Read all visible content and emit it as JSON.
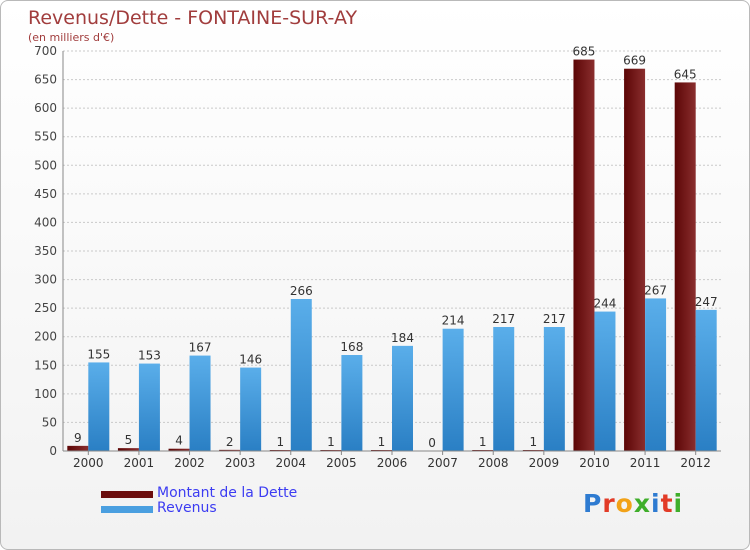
{
  "chart_data": {
    "type": "bar",
    "title": "Revenus/Dette - FONTAINE-SUR-AY",
    "subtitle": "(en milliers d'€)",
    "categories": [
      "2000",
      "2001",
      "2002",
      "2003",
      "2004",
      "2005",
      "2006",
      "2007",
      "2008",
      "2009",
      "2010",
      "2011",
      "2012"
    ],
    "series": [
      {
        "name": "Montant de la Dette",
        "color": "#7f1d1d",
        "values": [
          9,
          5,
          4,
          2,
          1,
          1,
          1,
          0,
          1,
          1,
          685,
          669,
          645
        ]
      },
      {
        "name": "Revenus",
        "color": "#4a9fe0",
        "values": [
          155,
          153,
          167,
          146,
          266,
          168,
          184,
          214,
          217,
          217,
          244,
          267,
          247
        ]
      }
    ],
    "yticks": [
      0,
      50,
      100,
      150,
      200,
      250,
      300,
      350,
      400,
      450,
      500,
      550,
      600,
      650,
      700
    ],
    "ylim": [
      0,
      700
    ],
    "grid": true,
    "legend": "bottom-left"
  },
  "logo": {
    "letters": [
      "P",
      "r",
      "o",
      "x",
      "i",
      "t",
      "i"
    ],
    "colors": [
      "#2e7bd1",
      "#e23b27",
      "#f2a218",
      "#3fae2a",
      "#2e7bd1",
      "#e23b27",
      "#3fae2a"
    ]
  }
}
